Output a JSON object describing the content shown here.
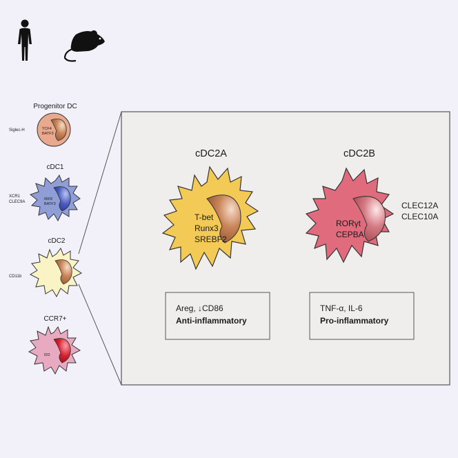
{
  "icons": {
    "human": "human-silhouette-icon",
    "mouse": "mouse-silhouette-icon"
  },
  "colors": {
    "background": "#f2f1f9",
    "panel": "#efeeec",
    "progenitor": "#e9a98e",
    "cdc1": "#8f9ed6",
    "cdc2": "#faf3c6",
    "ccr7": "#e8aac0",
    "cdc2a": "#f3ca55",
    "cdc2b": "#e06b7c",
    "nucleus": "#b7704a"
  },
  "cells": {
    "progenitor": {
      "title": "Progenitor DC",
      "marker": "Siglec-H",
      "tf_line1": "TCF4",
      "tf_line2": "BATF3"
    },
    "cdc1": {
      "title": "cDC1",
      "marker_line1": "XCR1",
      "marker_line2": "CLEC9A",
      "tf_line1": "IRF8",
      "tf_line2": "BATF3"
    },
    "cdc2": {
      "title": "cDC2",
      "marker": "CD11b"
    },
    "ccr7": {
      "title": "CCR7+",
      "tf": "ID2"
    }
  },
  "panel": {
    "cdc2a": {
      "title": "cDC2A",
      "tf": [
        "T-bet",
        "Runx3",
        "SREBF2"
      ],
      "box_line1": "Areg, ↓CD86",
      "box_line2": "Anti-inflammatory"
    },
    "cdc2b": {
      "title": "cDC2B",
      "tf": [
        "RORγt",
        "CEPBA"
      ],
      "markers": [
        "CLEC12A",
        "CLEC10A"
      ],
      "box_line1": "TNF-α, IL-6",
      "box_line2": "Pro-inflammatory"
    }
  }
}
